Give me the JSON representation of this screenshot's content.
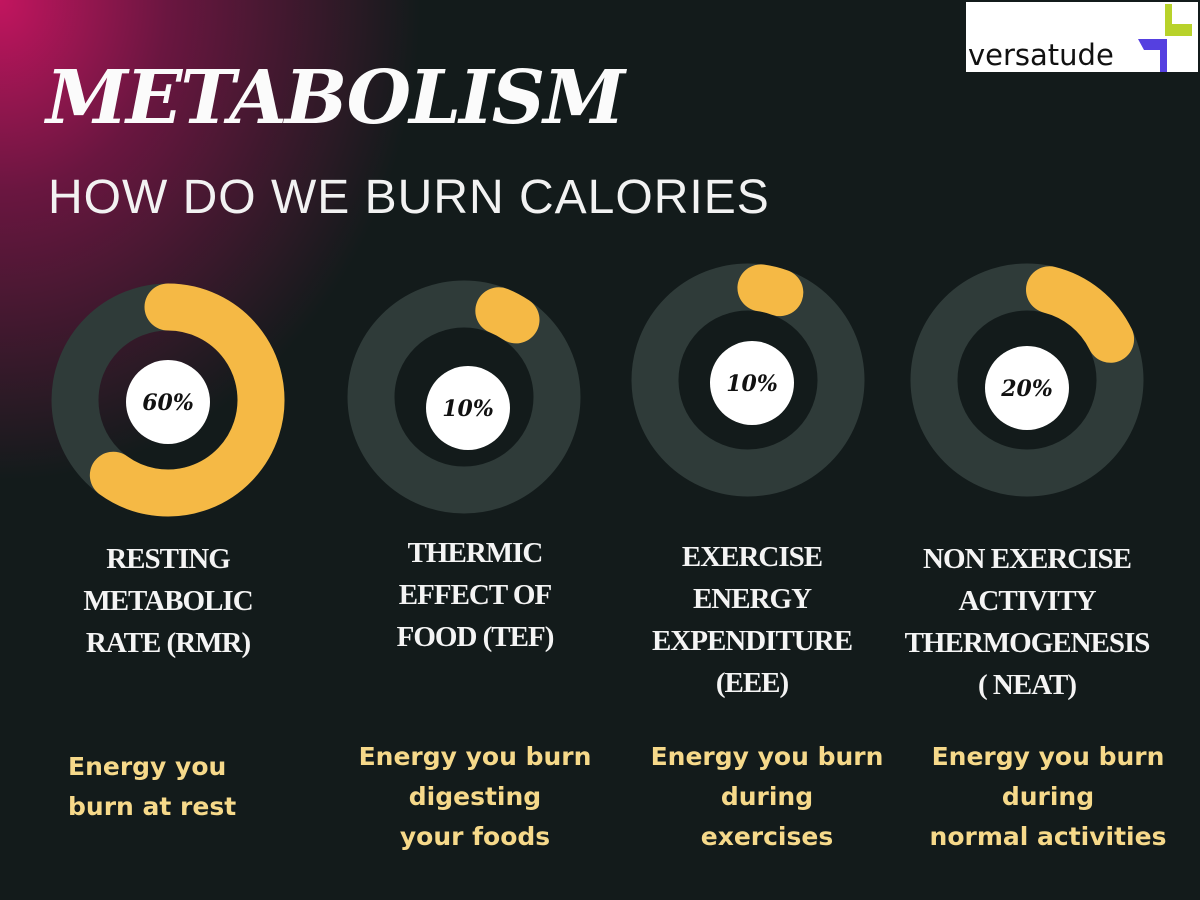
{
  "title": "METABOLISM",
  "subtitle": "HOW DO WE BURN CALORIES",
  "logo": {
    "text": "versatude"
  },
  "colors": {
    "arc": "#f5b945",
    "ring": "#2f3b39",
    "hole": "#131b1b",
    "accent": "#c2155f"
  },
  "chart_data": {
    "type": "pie",
    "title": "METABOLISM - HOW DO WE BURN CALORIES",
    "categories": [
      "RESTING METABOLIC RATE (RMR)",
      "THERMIC EFFECT OF FOOD (TEF)",
      "EXERCISE ENERGY EXPENDITURE (EEE)",
      "NON EXERCISE ACTIVITY THERMOGENESIS ( NEAT)"
    ],
    "values": [
      60,
      10,
      10,
      20
    ],
    "unit": "%",
    "items": [
      {
        "value_label": "60%",
        "name_lines": [
          "RESTING",
          "METABOLIC",
          "RATE (RMR)"
        ],
        "desc_lines": [
          "Energy you",
          "burn at rest"
        ]
      },
      {
        "value_label": "10%",
        "name_lines": [
          "THERMIC",
          "EFFECT OF",
          "FOOD (TEF)"
        ],
        "desc_lines": [
          "Energy you burn",
          "digesting",
          "your foods"
        ]
      },
      {
        "value_label": "10%",
        "name_lines": [
          "EXERCISE",
          "ENERGY",
          "EXPENDITURE",
          "(EEE)"
        ],
        "desc_lines": [
          "Energy you burn",
          "during",
          "exercises"
        ]
      },
      {
        "value_label": "20%",
        "name_lines": [
          "NON EXERCISE",
          "ACTIVITY",
          "THERMOGENESIS",
          "( NEAT)"
        ],
        "desc_lines": [
          "Energy you burn",
          "during",
          "normal activities"
        ]
      }
    ]
  }
}
